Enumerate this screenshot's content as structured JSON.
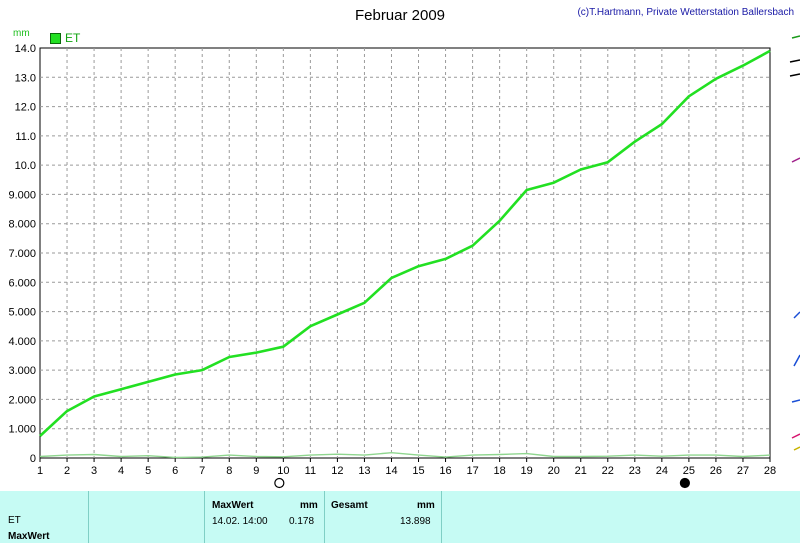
{
  "header": {
    "title": "Februar 2009",
    "copyright": "(c)T.Hartmann, Private Wetterstation Ballersbach",
    "unit": "mm"
  },
  "legend": {
    "label": "ET"
  },
  "colors": {
    "series": "#22e022",
    "secondary_series": "#8fd68f",
    "grid": "#9a9a9a",
    "panel": "#c6fbf4"
  },
  "chart_data": {
    "type": "line",
    "title": "Februar 2009",
    "xlabel": "",
    "ylabel": "mm",
    "x_ticks": [
      1,
      2,
      3,
      4,
      5,
      6,
      7,
      8,
      9,
      10,
      11,
      12,
      13,
      14,
      15,
      16,
      17,
      18,
      19,
      20,
      21,
      22,
      23,
      24,
      25,
      26,
      27,
      28
    ],
    "y_ticks": [
      "0",
      "1.000",
      "2.000",
      "3.000",
      "4.000",
      "5.000",
      "6.000",
      "7.000",
      "8.000",
      "9.000",
      "10.0",
      "11.0",
      "12.0",
      "13.0",
      "14.0"
    ],
    "xlim": [
      1,
      28
    ],
    "ylim": [
      0,
      14
    ],
    "grid": true,
    "legend_position": "top-left",
    "moon_markers": [
      {
        "x": 10,
        "phase": "full"
      },
      {
        "x": 25,
        "phase": "new"
      }
    ],
    "series": [
      {
        "name": "ET",
        "x": [
          1,
          2,
          3,
          4,
          5,
          6,
          7,
          8,
          9,
          10,
          11,
          12,
          13,
          14,
          15,
          16,
          17,
          18,
          19,
          20,
          21,
          22,
          23,
          24,
          25,
          26,
          27,
          28
        ],
        "values": [
          0.75,
          1.6,
          2.1,
          2.35,
          2.6,
          2.85,
          3.0,
          3.45,
          3.6,
          3.8,
          4.5,
          4.9,
          5.3,
          6.15,
          6.55,
          6.8,
          7.25,
          8.1,
          9.15,
          9.4,
          9.85,
          10.1,
          10.8,
          11.4,
          12.35,
          12.95,
          13.4,
          13.9
        ]
      },
      {
        "x": [
          1,
          2,
          3,
          4,
          5,
          6,
          7,
          8,
          9,
          10,
          11,
          12,
          13,
          14,
          15,
          16,
          17,
          18,
          19,
          20,
          21,
          22,
          23,
          24,
          25,
          26,
          27,
          28
        ],
        "values": [
          0.05,
          0.1,
          0.12,
          0.05,
          0.08,
          0.02,
          0.03,
          0.1,
          0.05,
          0.04,
          0.1,
          0.13,
          0.1,
          0.18,
          0.1,
          0.03,
          0.1,
          0.12,
          0.15,
          0.05,
          0.05,
          0.06,
          0.1,
          0.06,
          0.1,
          0.1,
          0.05,
          0.1
        ]
      }
    ]
  },
  "panel": {
    "rows": [
      "ET",
      "MaxWert"
    ],
    "maxwert_header": "MaxWert",
    "maxwert_unit": "mm",
    "maxwert_time": "14.02.  14:00",
    "maxwert_value": "0.178",
    "gesamt_header": "Gesamt",
    "gesamt_unit": "mm",
    "gesamt_value": "13.898"
  }
}
